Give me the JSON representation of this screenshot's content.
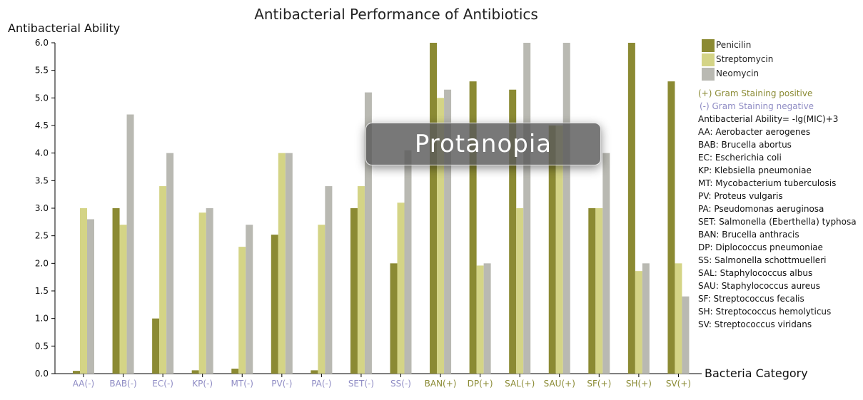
{
  "chart_data": {
    "type": "bar",
    "title": "Antibacterial Performance of Antibiotics",
    "ylabel": "Antibacterial Ability",
    "xlabel": "Bacteria Category",
    "ylim": [
      0,
      6
    ],
    "yticks": [
      "0.0",
      "0.5",
      "1.0",
      "1.5",
      "2.0",
      "2.5",
      "3.0",
      "3.5",
      "4.0",
      "4.5",
      "5.0",
      "5.5",
      "6.0"
    ],
    "categories": [
      "AA(-)",
      "BAB(-)",
      "EC(-)",
      "KP(-)",
      "MT(-)",
      "PV(-)",
      "PA(-)",
      "SET(-)",
      "SS(-)",
      "BAN(+)",
      "DP(+)",
      "SAL(+)",
      "SAU(+)",
      "SF(+)",
      "SH(+)",
      "SV(+)"
    ],
    "series": [
      {
        "name": "Penicilin",
        "color": "#8b8a33",
        "values": [
          0.05,
          3.0,
          1.0,
          0.06,
          0.09,
          2.52,
          0.06,
          3.0,
          2.0,
          6.0,
          5.3,
          5.15,
          4.5,
          3.0,
          6.0,
          5.3
        ]
      },
      {
        "name": "Streptomycin",
        "color": "#d4d486",
        "values": [
          3.0,
          2.7,
          3.4,
          2.92,
          2.3,
          4.0,
          2.7,
          3.4,
          3.1,
          5.0,
          1.96,
          3.0,
          4.5,
          3.0,
          1.86,
          2.0
        ]
      },
      {
        "name": "Neomycin",
        "color": "#b9b9b2",
        "values": [
          2.8,
          4.7,
          4.0,
          3.0,
          2.7,
          4.0,
          3.4,
          5.1,
          4.05,
          5.15,
          2.0,
          6.0,
          6.0,
          4.0,
          2.0,
          1.4
        ]
      }
    ],
    "legend_position": "right",
    "grid": false
  },
  "colors": {
    "negative_label": "#8f8cc4",
    "positive_label": "#8a8a33"
  },
  "notes": {
    "positive": "(+) Gram Staining positive",
    "negative": "(-) Gram Staining negative",
    "formula": "Antibacterial Ability= -lg(MIC)+3",
    "abbreviations": [
      "AA: Aerobacter aerogenes",
      "BAB: Brucella abortus",
      "EC: Escherichia coli",
      "KP: Klebsiella pneumoniae",
      "MT: Mycobacterium tuberculosis",
      "PV: Proteus vulgaris",
      "PA: Pseudomonas aeruginosa",
      "SET: Salmonella (Eberthella) typhosa",
      "BAN: Brucella anthracis",
      "DP: Diplococcus pneumoniae",
      "SS: Salmonella schottmuelleri",
      "SAL: Staphylococcus albus",
      "SAU: Staphylococcus aureus",
      "SF: Streptococcus fecalis",
      "SH: Streptococcus hemolyticus",
      "SV: Streptococcus viridans"
    ]
  },
  "overlay": {
    "label": "Protanopia"
  }
}
